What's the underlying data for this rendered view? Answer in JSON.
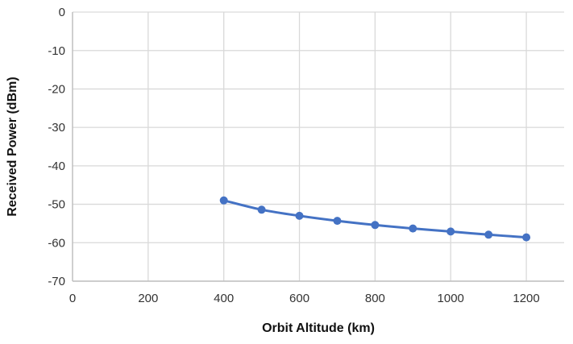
{
  "chart_data": {
    "type": "line",
    "title": "",
    "xlabel": "Orbit Altitude (km)",
    "ylabel": "Received Power (dBm)",
    "x": [
      400,
      500,
      600,
      700,
      800,
      900,
      1000,
      1100,
      1200
    ],
    "series": [
      {
        "name": "Received Power",
        "values": [
          -49.0,
          -51.4,
          -53.0,
          -54.3,
          -55.4,
          -56.3,
          -57.1,
          -57.9,
          -58.6
        ]
      }
    ],
    "xlim": [
      0,
      1300
    ],
    "ylim": [
      -70,
      0
    ],
    "x_ticks": [
      0,
      200,
      400,
      600,
      800,
      1000,
      1200
    ],
    "y_ticks": [
      0,
      -10,
      -20,
      -30,
      -40,
      -50,
      -60,
      -70
    ],
    "grid": true,
    "legend": false,
    "marker": "circle",
    "colors": {
      "line": "#4472C4",
      "marker": "#4472C4",
      "gridline": "#D9D9D9",
      "axis_line": "#BFBFBF",
      "tick_label": "#333333",
      "axis_title": "#111111",
      "background": "#FFFFFF"
    }
  }
}
